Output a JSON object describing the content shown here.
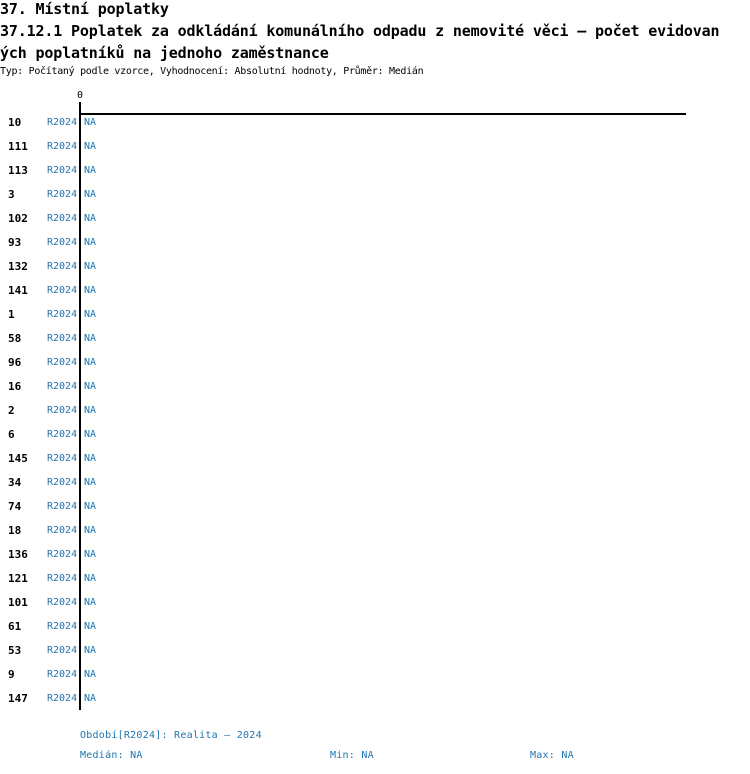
{
  "chart": {
    "title": "37. Místní poplatky",
    "subtitle_line1": "37.12.1 Poplatek za odkládání komunálního odpadu z nemovité věci – počet evidovan",
    "subtitle_line2": "ých poplatníků na jednoho zaměstnance",
    "meta": "Typ: Počítaný podle vzorce, Vyhodnocení: Absolutní hodnoty, Průměr: Medián",
    "axis": {
      "tick_label": "0"
    },
    "footer": {
      "period": "Období[R2024]: Realita – 2024",
      "median": "Medián: NA",
      "min": "Min: NA",
      "max": "Max: NA"
    },
    "colors": {
      "accent_blue": "#1F74B0",
      "axis_black": "#000000",
      "background": "#FFFFFF"
    }
  },
  "chart_data": {
    "type": "bar",
    "orientation": "horizontal",
    "title": "37. Místní poplatky",
    "subtitle": "37.12.1 Poplatek za odkládání komunálního odpadu z nemovité věci – počet evidovaných poplatníků na jednoho zaměstnance",
    "meta": "Typ: Počítaný podle vzorce, Vyhodnocení: Absolutní hodnoty, Průměr: Medián",
    "categories": [
      "10",
      "111",
      "113",
      "3",
      "102",
      "93",
      "132",
      "141",
      "1",
      "58",
      "96",
      "16",
      "2",
      "6",
      "145",
      "34",
      "74",
      "18",
      "136",
      "121",
      "101",
      "61",
      "53",
      "9",
      "147"
    ],
    "series": [
      {
        "name": "R2024",
        "values": [
          null,
          null,
          null,
          null,
          null,
          null,
          null,
          null,
          null,
          null,
          null,
          null,
          null,
          null,
          null,
          null,
          null,
          null,
          null,
          null,
          null,
          null,
          null,
          null,
          null
        ]
      }
    ],
    "value_labels": [
      "NA",
      "NA",
      "NA",
      "NA",
      "NA",
      "NA",
      "NA",
      "NA",
      "NA",
      "NA",
      "NA",
      "NA",
      "NA",
      "NA",
      "NA",
      "NA",
      "NA",
      "NA",
      "NA",
      "NA",
      "NA",
      "NA",
      "NA",
      "NA",
      "NA"
    ],
    "x_axis": {
      "ticks": [
        0
      ],
      "tick_labels": [
        "0"
      ],
      "position": "top"
    },
    "grid": false,
    "legend": false,
    "period": "Realita – 2024",
    "stats": {
      "median": "NA",
      "min": "NA",
      "max": "NA"
    }
  }
}
